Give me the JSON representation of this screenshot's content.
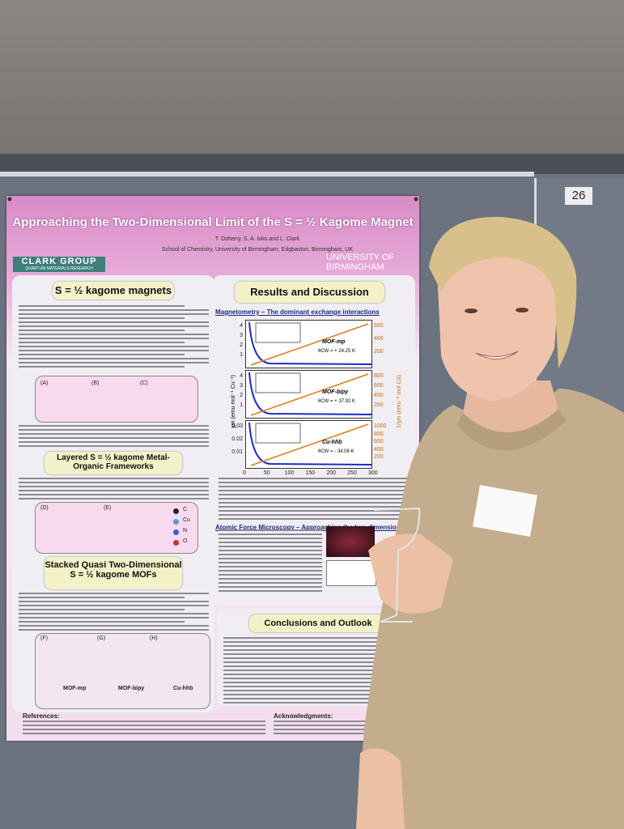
{
  "wall_sign": "26",
  "poster": {
    "title": "Approaching the Two-Dimensional Limit of the S = ½ Kagome Magnet",
    "authors": "T. Doheny, S. A. Ivko and L. Clark",
    "affiliation": "School of Chemistry, University of Birmingham, Edgbaston, Birmingham, UK",
    "group_logo": {
      "name": "CLARK GROUP",
      "tagline": "QUANTUM MATERIALS RESEARCH"
    },
    "university": "UNIVERSITY OF BIRMINGHAM",
    "left_sections": [
      {
        "heading": "S = ½ kagome magnets",
        "panels": [
          "(A)",
          "(B)",
          "(C)"
        ]
      },
      {
        "heading": "Layered S = ½ kagome Metal-Organic Frameworks",
        "panels": [
          "(D)",
          "(E)"
        ],
        "legend": [
          "C",
          "Cu",
          "N",
          "O"
        ]
      },
      {
        "heading": "Stacked Quasi Two-Dimensional S = ½ kagome MOFs",
        "panels": [
          "(F)",
          "(G)",
          "(H)"
        ],
        "compounds": [
          "MOF-mp",
          "MOF-bipy",
          "Cu-hhb"
        ]
      }
    ],
    "results": {
      "heading": "Results and Discussion",
      "magnetometry": {
        "heading": "Magnetometry – The dominant exchange interactions",
        "y_label": "χm (emu mol⁻¹ Cu⁻¹)",
        "y2_label": "1/χm (emu⁻¹ mol Cu)",
        "x_ticks": [
          0,
          50,
          100,
          150,
          200,
          250,
          300
        ],
        "plots": [
          {
            "name": "MOF-mp",
            "theta": "θCW = + 24.25 K",
            "y_ticks": [
              4,
              3,
              2,
              1
            ],
            "y2_ticks": [
              600,
              400,
              200
            ]
          },
          {
            "name": "MOF-bipy",
            "theta": "θCW = + 37.92 K",
            "y_ticks": [
              4,
              3,
              2,
              1
            ],
            "y2_ticks": [
              800,
              600,
              400,
              200
            ]
          },
          {
            "name": "Cu-hhb",
            "theta": "θCW = - 34.08 K",
            "y_ticks": [
              0.03,
              0.02,
              0.01
            ],
            "y2_ticks": [
              1000,
              800,
              600,
              400,
              200
            ]
          }
        ]
      },
      "afm_heading": "Atomic Force Microscopy – Approaching the two-dimensional"
    },
    "conclusions_heading": "Conclusions and Outlook",
    "references_heading": "References:",
    "acknowledgments_heading": "Acknowledgments:"
  }
}
